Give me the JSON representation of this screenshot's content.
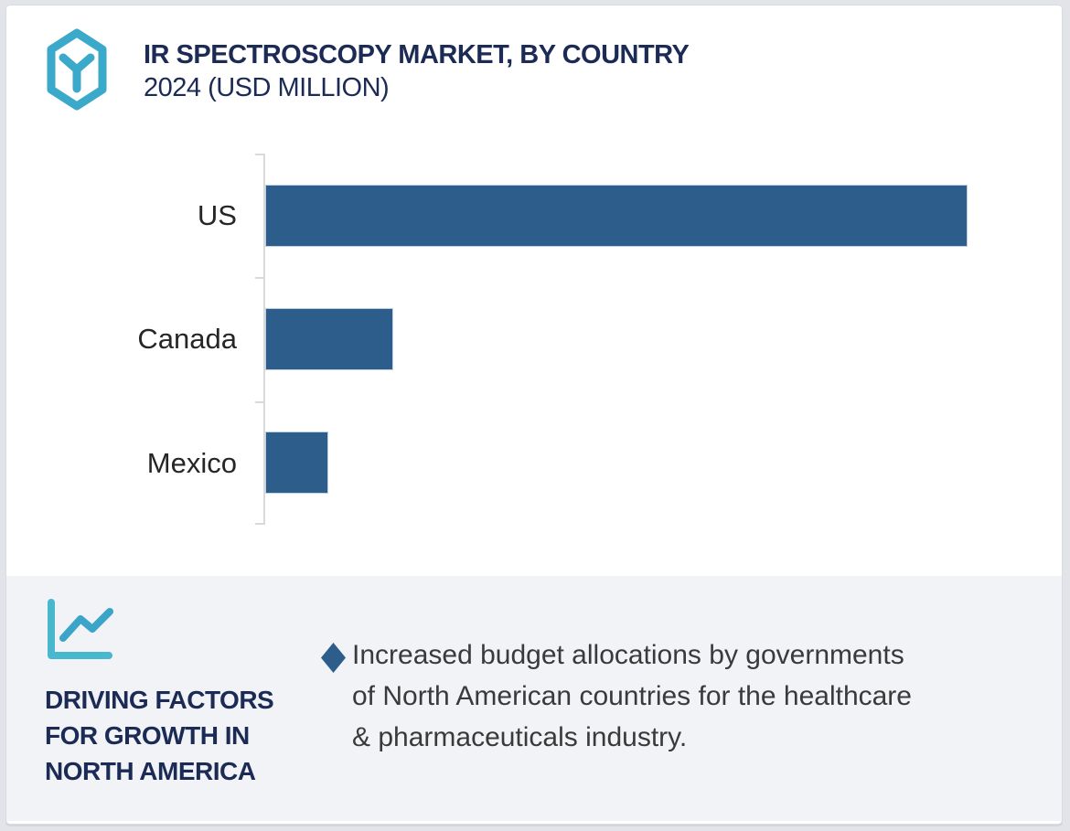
{
  "brand": {
    "logo_icon": "hexagon-y-logo-icon",
    "logo_color": "#3BA9C9"
  },
  "header": {
    "title": "IR SPECTROSCOPY MARKET, BY COUNTRY",
    "subtitle": "2024 (USD MILLION)",
    "title_color": "#1B2B55"
  },
  "chart_data": {
    "type": "bar",
    "orientation": "horizontal",
    "title": "IR SPECTROSCOPY MARKET, BY COUNTRY",
    "subtitle": "2024 (USD MILLION)",
    "categories": [
      "US",
      "Canada",
      "Mexico"
    ],
    "values": [
      100,
      18.2,
      9.0
    ],
    "values_note": "Bars carry no numeric labels; values are relative bar lengths with US = 100",
    "unit": "USD Million (relative)",
    "xlabel": "",
    "ylabel": "",
    "xlim": [
      0,
      100
    ],
    "bar_color": "#2D5E8B",
    "axis_color": "#D9D9D9",
    "grid": false,
    "legend": false,
    "value_axis_shown": false
  },
  "driving_factors": {
    "panel_icon": "trend-line-chart-icon",
    "icon_color": "#49B8CF",
    "heading": "DRIVING FACTORS\nFOR GROWTH IN\nNORTH AMERICA",
    "bullet_icon": "diamond-bullet-icon",
    "bullet_text": "Increased budget allocations by governments\nof North American countries for the healthcare\n& pharmaceuticals industry.",
    "panel_bg": "#F1F3F7",
    "accent_color": "#2D5E8B"
  }
}
